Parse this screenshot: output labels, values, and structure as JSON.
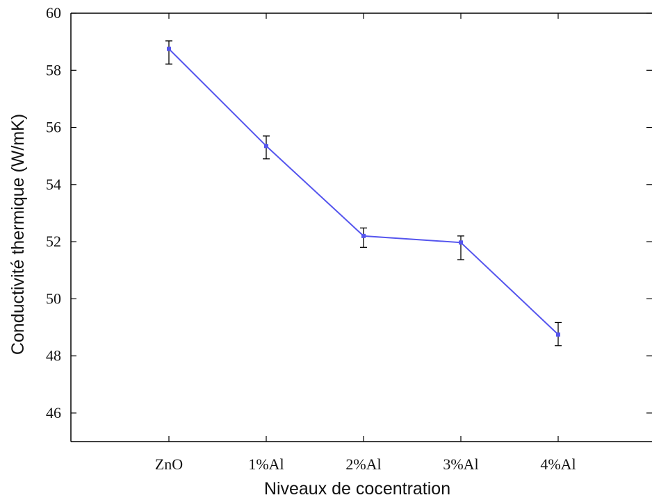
{
  "chart_data": {
    "type": "line",
    "categories": [
      "ZnO",
      "1%Al",
      "2%Al",
      "3%Al",
      "4%Al"
    ],
    "series": [
      {
        "values": [
          58.75,
          55.35,
          52.2,
          51.97,
          48.75
        ],
        "err_low": [
          58.22,
          54.9,
          51.8,
          51.37,
          48.36
        ],
        "err_high": [
          59.03,
          55.7,
          52.48,
          52.2,
          49.17
        ]
      }
    ],
    "xlabel": "Niveaux de cocentration",
    "ylabel": "Conductivité thermique (W/mK)",
    "ylim": [
      45,
      60
    ],
    "yticks": [
      46,
      48,
      50,
      52,
      54,
      56,
      58,
      60
    ],
    "grid": false,
    "line_color": "#5555ee",
    "error_bar_color": "#000000",
    "axis_color": "#000000"
  }
}
